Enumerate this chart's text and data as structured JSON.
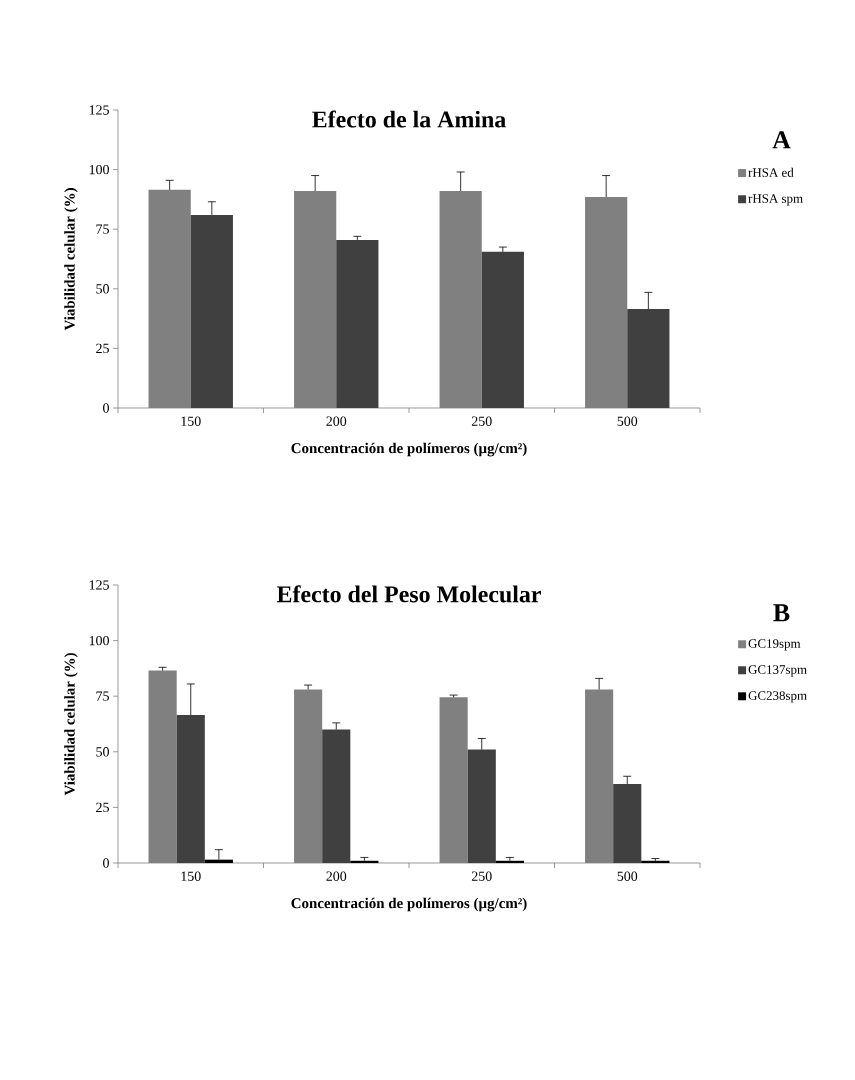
{
  "chart_data": [
    {
      "type": "bar",
      "title": "Efecto de la Amina",
      "xlabel": "Concentración de polímeros (µg/cm²)",
      "ylabel": "Viabilidad celular (%)",
      "annotations": [
        "A"
      ],
      "categories": [
        "150",
        "200",
        "250",
        "500"
      ],
      "ylim": [
        0,
        125
      ],
      "yticks": [
        0,
        25,
        50,
        75,
        100,
        125
      ],
      "legend": "right",
      "series": [
        {
          "name": "rHSA ed",
          "color": "#808080",
          "values": [
            91.5,
            91,
            91,
            88.5
          ],
          "errors": [
            [
              91.5,
              95.5
            ],
            [
              91,
              97.5
            ],
            [
              91,
              99
            ],
            [
              88.5,
              97.5
            ]
          ]
        },
        {
          "name": "rHSA spm",
          "color": "#404040",
          "values": [
            81,
            70.5,
            65.5,
            41.5
          ],
          "errors": [
            [
              81,
              86.5
            ],
            [
              70.5,
              72
            ],
            [
              65.5,
              67.5
            ],
            [
              41.5,
              48.5
            ]
          ]
        }
      ]
    },
    {
      "type": "bar",
      "title": "Efecto del Peso Molecular",
      "xlabel": "Concentración de polímeros (µg/cm²)",
      "ylabel": "Viabilidad celular (%)",
      "annotations": [
        "B"
      ],
      "categories": [
        "150",
        "200",
        "250",
        "500"
      ],
      "ylim": [
        0,
        125
      ],
      "yticks": [
        0,
        25,
        50,
        75,
        100,
        125
      ],
      "legend": "right",
      "series": [
        {
          "name": "GC19spm",
          "color": "#808080",
          "values": [
            86.5,
            78,
            74.5,
            78
          ],
          "errors": [
            [
              86.5,
              88
            ],
            [
              78,
              80
            ],
            [
              74.5,
              75.5
            ],
            [
              78,
              83
            ]
          ]
        },
        {
          "name": "GC137spm",
          "color": "#404040",
          "values": [
            66.5,
            60,
            51,
            35.5
          ],
          "errors": [
            [
              66.5,
              80.5
            ],
            [
              60,
              63
            ],
            [
              51,
              56
            ],
            [
              35.5,
              39
            ]
          ]
        },
        {
          "name": "GC238spm",
          "color": "#000000",
          "values": [
            1.5,
            1,
            1,
            1
          ],
          "errors": [
            [
              1.5,
              6
            ],
            [
              1,
              2.5
            ],
            [
              1,
              2.5
            ],
            [
              1,
              2
            ]
          ]
        }
      ]
    }
  ]
}
